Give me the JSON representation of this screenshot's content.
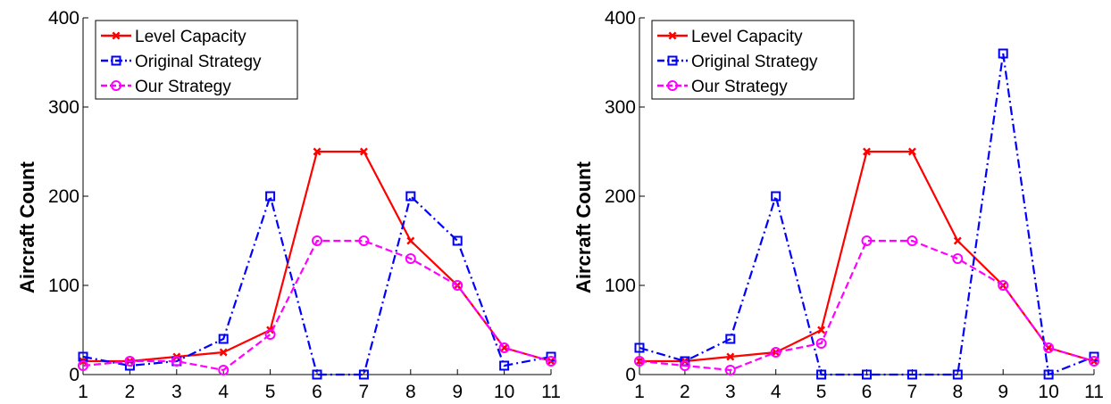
{
  "chart_data": [
    {
      "type": "line",
      "title": "",
      "xlabel": "",
      "ylabel": "Aircraft Count",
      "x": [
        1,
        2,
        3,
        4,
        5,
        6,
        7,
        8,
        9,
        10,
        11
      ],
      "xlim": [
        1,
        11
      ],
      "ylim": [
        0,
        400
      ],
      "yticks": [
        0,
        100,
        200,
        300,
        400
      ],
      "grid": false,
      "legend_position": "top-left",
      "series": [
        {
          "name": "Level Capacity",
          "color": "#ff0000",
          "marker": "x",
          "style": "solid",
          "values": [
            15,
            15,
            20,
            25,
            50,
            250,
            250,
            150,
            100,
            30,
            15
          ]
        },
        {
          "name": "Original Strategy",
          "color": "#0000ff",
          "marker": "square",
          "style": "dashdot",
          "values": [
            20,
            10,
            15,
            40,
            200,
            0,
            0,
            200,
            150,
            10,
            20
          ]
        },
        {
          "name": "Our Strategy",
          "color": "#ff00ff",
          "marker": "circle",
          "style": "dashed",
          "values": [
            10,
            15,
            15,
            5,
            45,
            150,
            150,
            130,
            100,
            30,
            15
          ]
        }
      ]
    },
    {
      "type": "line",
      "title": "",
      "xlabel": "",
      "ylabel": "Aircraft Count",
      "x": [
        1,
        2,
        3,
        4,
        5,
        6,
        7,
        8,
        9,
        10,
        11
      ],
      "xlim": [
        1,
        11
      ],
      "ylim": [
        0,
        400
      ],
      "yticks": [
        0,
        100,
        200,
        300,
        400
      ],
      "grid": false,
      "legend_position": "top-left",
      "series": [
        {
          "name": "Level Capacity",
          "color": "#ff0000",
          "marker": "x",
          "style": "solid",
          "values": [
            15,
            15,
            20,
            25,
            50,
            250,
            250,
            150,
            100,
            30,
            15
          ]
        },
        {
          "name": "Original Strategy",
          "color": "#0000ff",
          "marker": "square",
          "style": "dashdot",
          "values": [
            30,
            15,
            40,
            200,
            0,
            0,
            0,
            0,
            360,
            0,
            20
          ]
        },
        {
          "name": "Our Strategy",
          "color": "#ff00ff",
          "marker": "circle",
          "style": "dashed",
          "values": [
            15,
            10,
            5,
            25,
            35,
            150,
            150,
            130,
            100,
            30,
            15
          ]
        }
      ]
    }
  ]
}
